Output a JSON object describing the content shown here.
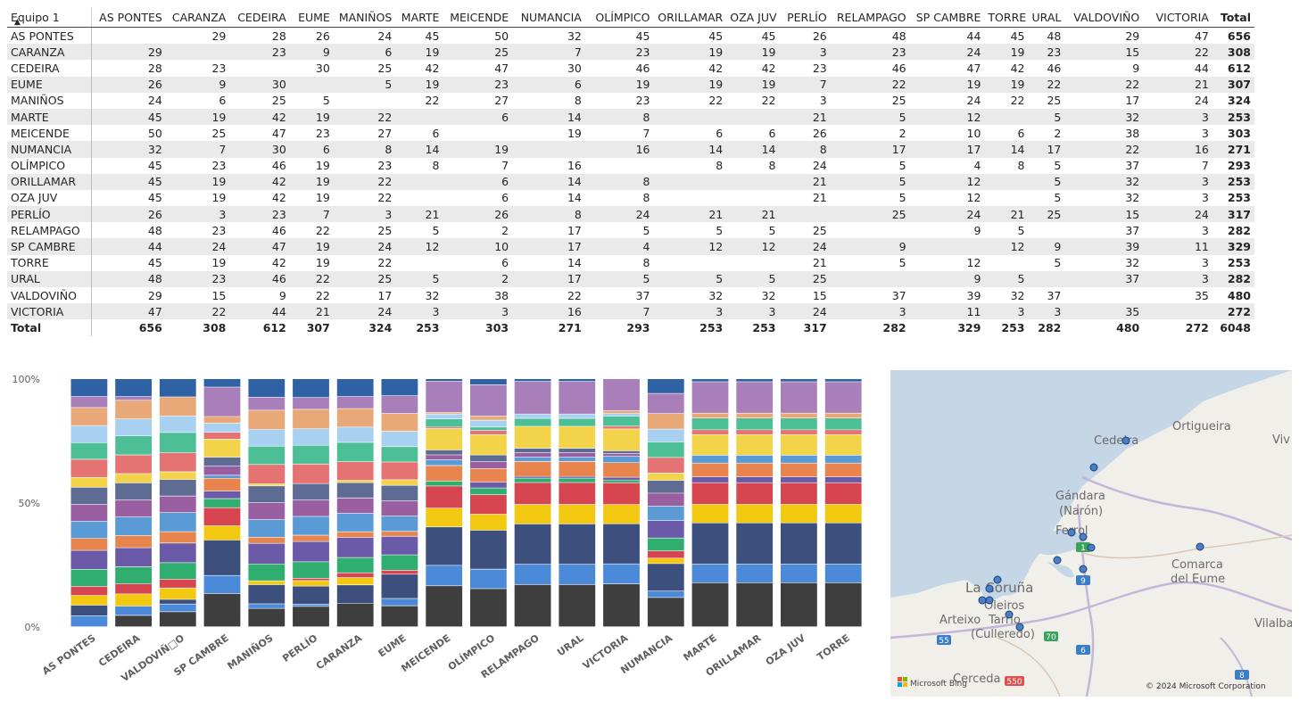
{
  "matrix": {
    "row_header": "Equipo 1",
    "columns": [
      "AS PONTES",
      "CARANZA",
      "CEDEIRA",
      "EUME",
      "MANIÑOS",
      "MARTE",
      "MEICENDE",
      "NUMANCIA",
      "OLÍMPICO",
      "ORILLAMAR",
      "OZA JUV",
      "PERLÍO",
      "RELAMPAGO",
      "SP CAMBRE",
      "TORRE",
      "URAL",
      "VALDOVIÑO",
      "VICTORIA",
      "Total"
    ],
    "rows": [
      {
        "label": "AS PONTES",
        "cells": [
          "",
          "29",
          "28",
          "26",
          "24",
          "45",
          "50",
          "32",
          "45",
          "45",
          "45",
          "26",
          "48",
          "44",
          "45",
          "48",
          "29",
          "47",
          "656"
        ]
      },
      {
        "label": "CARANZA",
        "cells": [
          "29",
          "",
          "23",
          "9",
          "6",
          "19",
          "25",
          "7",
          "23",
          "19",
          "19",
          "3",
          "23",
          "24",
          "19",
          "23",
          "15",
          "22",
          "308"
        ]
      },
      {
        "label": "CEDEIRA",
        "cells": [
          "28",
          "23",
          "",
          "30",
          "25",
          "42",
          "47",
          "30",
          "46",
          "42",
          "42",
          "23",
          "46",
          "47",
          "42",
          "46",
          "9",
          "44",
          "612"
        ]
      },
      {
        "label": "EUME",
        "cells": [
          "26",
          "9",
          "30",
          "",
          "5",
          "19",
          "23",
          "6",
          "19",
          "19",
          "19",
          "7",
          "22",
          "19",
          "19",
          "22",
          "22",
          "21",
          "307"
        ]
      },
      {
        "label": "MANIÑOS",
        "cells": [
          "24",
          "6",
          "25",
          "5",
          "",
          "22",
          "27",
          "8",
          "23",
          "22",
          "22",
          "3",
          "25",
          "24",
          "22",
          "25",
          "17",
          "24",
          "324"
        ]
      },
      {
        "label": "MARTE",
        "cells": [
          "45",
          "19",
          "42",
          "19",
          "22",
          "",
          "6",
          "14",
          "8",
          "",
          "",
          "21",
          "5",
          "12",
          "",
          "5",
          "32",
          "3",
          "253"
        ]
      },
      {
        "label": "MEICENDE",
        "cells": [
          "50",
          "25",
          "47",
          "23",
          "27",
          "6",
          "",
          "19",
          "7",
          "6",
          "6",
          "26",
          "2",
          "10",
          "6",
          "2",
          "38",
          "3",
          "303"
        ]
      },
      {
        "label": "NUMANCIA",
        "cells": [
          "32",
          "7",
          "30",
          "6",
          "8",
          "14",
          "19",
          "",
          "16",
          "14",
          "14",
          "8",
          "17",
          "17",
          "14",
          "17",
          "22",
          "16",
          "271"
        ]
      },
      {
        "label": "OLÍMPICO",
        "cells": [
          "45",
          "23",
          "46",
          "19",
          "23",
          "8",
          "7",
          "16",
          "",
          "8",
          "8",
          "24",
          "5",
          "4",
          "8",
          "5",
          "37",
          "7",
          "293"
        ]
      },
      {
        "label": "ORILLAMAR",
        "cells": [
          "45",
          "19",
          "42",
          "19",
          "22",
          "",
          "6",
          "14",
          "8",
          "",
          "",
          "21",
          "5",
          "12",
          "",
          "5",
          "32",
          "3",
          "253"
        ]
      },
      {
        "label": "OZA JUV",
        "cells": [
          "45",
          "19",
          "42",
          "19",
          "22",
          "",
          "6",
          "14",
          "8",
          "",
          "",
          "21",
          "5",
          "12",
          "",
          "5",
          "32",
          "3",
          "253"
        ]
      },
      {
        "label": "PERLÍO",
        "cells": [
          "26",
          "3",
          "23",
          "7",
          "3",
          "21",
          "26",
          "8",
          "24",
          "21",
          "21",
          "",
          "25",
          "24",
          "21",
          "25",
          "15",
          "24",
          "317"
        ]
      },
      {
        "label": "RELAMPAGO",
        "cells": [
          "48",
          "23",
          "46",
          "22",
          "25",
          "5",
          "2",
          "17",
          "5",
          "5",
          "5",
          "25",
          "",
          "9",
          "5",
          "",
          "37",
          "3",
          "282"
        ]
      },
      {
        "label": "SP CAMBRE",
        "cells": [
          "44",
          "24",
          "47",
          "19",
          "24",
          "12",
          "10",
          "17",
          "4",
          "12",
          "12",
          "24",
          "9",
          "",
          "12",
          "9",
          "39",
          "11",
          "329"
        ]
      },
      {
        "label": "TORRE",
        "cells": [
          "45",
          "19",
          "42",
          "19",
          "22",
          "",
          "6",
          "14",
          "8",
          "",
          "",
          "21",
          "5",
          "12",
          "",
          "5",
          "32",
          "3",
          "253"
        ]
      },
      {
        "label": "URAL",
        "cells": [
          "48",
          "23",
          "46",
          "22",
          "25",
          "5",
          "2",
          "17",
          "5",
          "5",
          "5",
          "25",
          "",
          "9",
          "5",
          "",
          "37",
          "3",
          "282"
        ]
      },
      {
        "label": "VALDOVIÑO",
        "cells": [
          "29",
          "15",
          "9",
          "22",
          "17",
          "32",
          "38",
          "22",
          "37",
          "32",
          "32",
          "15",
          "37",
          "39",
          "32",
          "37",
          "",
          "35",
          "480"
        ]
      },
      {
        "label": "VICTORIA",
        "cells": [
          "47",
          "22",
          "44",
          "21",
          "24",
          "3",
          "3",
          "16",
          "7",
          "3",
          "3",
          "24",
          "3",
          "11",
          "3",
          "3",
          "35",
          "",
          "272"
        ]
      }
    ],
    "total_row": {
      "label": "Total",
      "cells": [
        "656",
        "308",
        "612",
        "307",
        "324",
        "253",
        "303",
        "271",
        "293",
        "253",
        "253",
        "317",
        "282",
        "329",
        "253",
        "282",
        "480",
        "272",
        "6048"
      ]
    }
  },
  "chart_data": {
    "type": "bar",
    "stacked_percent": true,
    "y_ticks": [
      "100%",
      "50%",
      "0%"
    ],
    "categories": [
      "AS PONTES",
      "CEDEIRA",
      "VALDOVIÑ□O",
      "SP CAMBRE",
      "MANIÑOS",
      "PERLÍO",
      "CARANZA",
      "EUME",
      "MEICENDE",
      "OLÍMPICO",
      "RELAMPAGO",
      "URAL",
      "VICTORIA",
      "NUMANCIA",
      "MARTE",
      "ORILLAMAR",
      "OZA JUV",
      "TORRE"
    ],
    "palette": [
      "#4a8ad8",
      "#3d4f7d",
      "#f2c811",
      "#e0e0e0",
      "#d64550",
      "#3ba55c",
      "#6a5aa8",
      "#e8854f",
      "#5b9bd5",
      "#9a5fa0",
      "#5e6c94",
      "#f3d34a",
      "#e05a5f",
      "#42b09a",
      "#a8d0f0",
      "#e8a878",
      "#a87fb8",
      "#2e5fa0",
      "#394463"
    ],
    "series_order": [
      "AS PONTES",
      "CARANZA",
      "CEDEIRA",
      "EUME",
      "MANIÑOS",
      "MARTE",
      "MEICENDE",
      "NUMANCIA",
      "OLÍMPICO",
      "ORILLAMAR",
      "OZA JUV",
      "PERLÍO",
      "RELAMPAGO",
      "SP CAMBRE",
      "TORRE",
      "URAL",
      "VALDOVIÑO",
      "VICTORIA"
    ],
    "series_colors": [
      "#3e3e3e",
      "#4a8ad8",
      "#3d4f7d",
      "#f2c811",
      "#d64550",
      "#2fae6f",
      "#6a5aa8",
      "#e8854f",
      "#5b9bd5",
      "#9a5fa0",
      "#5e6c94",
      "#f3d34a",
      "#e57373",
      "#4cbf97",
      "#a8d0f0",
      "#e8a878",
      "#a87fb8",
      "#2e62a4"
    ]
  },
  "map": {
    "labels": [
      "Cedeira",
      "Ortigueira",
      "Viv",
      "Gándara",
      "(Narón)",
      "Ferrol",
      "Comarca",
      "del Eume",
      "La Coruña",
      "Oleiros",
      "Arteixo",
      "Tarrio",
      "(Culleredo)",
      "Vilalba",
      "Cerceda"
    ],
    "road_numbers": [
      "1",
      "9",
      "55",
      "70",
      "6",
      "550",
      "8"
    ],
    "attribution_left": "Microsoft Bing",
    "attribution_right": "© 2024 Microsoft Corporation"
  }
}
